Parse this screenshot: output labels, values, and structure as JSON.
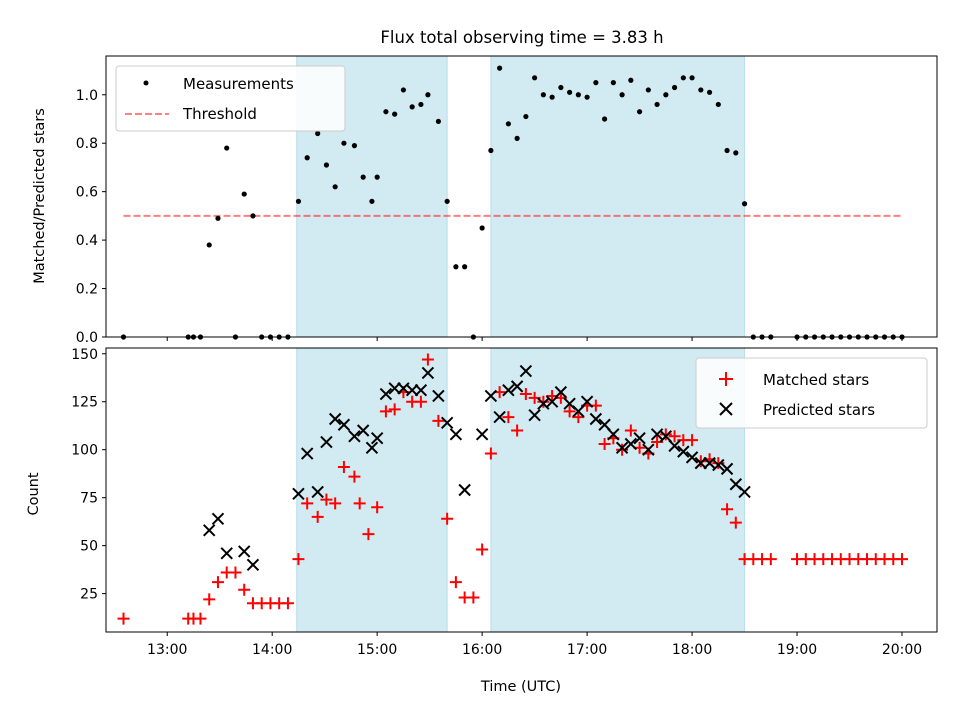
{
  "title": "Flux total observing time = 3.83 h",
  "colors": {
    "band": "#add8e6",
    "threshold": "#ff0000",
    "measurements": "#000000",
    "matched": "#ff0000",
    "predicted": "#000000"
  },
  "chart_data": [
    {
      "type": "scatter",
      "title": "Flux total observing time = 3.83 h",
      "xlabel": "",
      "ylabel": "Matched/Predicted stars",
      "xlim": [
        "12:25",
        "20:20"
      ],
      "ylim": [
        0,
        1.16
      ],
      "yticks": [
        "0.0",
        "0.2",
        "0.4",
        "0.6",
        "0.8",
        "1.0"
      ],
      "ytick_values": [
        0,
        0.2,
        0.4,
        0.6,
        0.8,
        1.0
      ],
      "shaded_intervals": [
        [
          "14:14",
          "15:40"
        ],
        [
          "16:05",
          "18:30"
        ]
      ],
      "legend": {
        "position": "upper-left",
        "entries": [
          "Measurements",
          "Threshold"
        ]
      },
      "threshold": {
        "name": "Threshold",
        "y": 0.5,
        "x_range": [
          "12:35",
          "20:00"
        ],
        "style": "dashed"
      },
      "series": [
        {
          "name": "Measurements",
          "marker": "dot",
          "points": [
            [
              "12:35",
              0.0
            ],
            [
              "13:12",
              0.0
            ],
            [
              "13:15",
              0.0
            ],
            [
              "13:19",
              0.0
            ],
            [
              "13:24",
              0.38
            ],
            [
              "13:29",
              0.49
            ],
            [
              "13:34",
              0.78
            ],
            [
              "13:39",
              0.0
            ],
            [
              "13:44",
              0.59
            ],
            [
              "13:49",
              0.5
            ],
            [
              "13:54",
              0.0
            ],
            [
              "13:59",
              0.0
            ],
            [
              "14:04",
              0.0
            ],
            [
              "14:09",
              0.0
            ],
            [
              "14:15",
              0.56
            ],
            [
              "14:20",
              0.74
            ],
            [
              "14:26",
              0.84
            ],
            [
              "14:31",
              0.71
            ],
            [
              "14:36",
              0.62
            ],
            [
              "14:41",
              0.8
            ],
            [
              "14:47",
              0.79
            ],
            [
              "14:52",
              0.66
            ],
            [
              "14:57",
              0.56
            ],
            [
              "15:00",
              0.66
            ],
            [
              "15:05",
              0.93
            ],
            [
              "15:10",
              0.92
            ],
            [
              "15:15",
              1.02
            ],
            [
              "15:20",
              0.95
            ],
            [
              "15:25",
              0.96
            ],
            [
              "15:29",
              1.0
            ],
            [
              "15:35",
              0.89
            ],
            [
              "15:40",
              0.56
            ],
            [
              "15:45",
              0.29
            ],
            [
              "15:50",
              0.29
            ],
            [
              "15:55",
              0.0
            ],
            [
              "16:00",
              0.45
            ],
            [
              "16:05",
              0.77
            ],
            [
              "16:10",
              1.11
            ],
            [
              "16:15",
              0.88
            ],
            [
              "16:20",
              0.82
            ],
            [
              "16:25",
              0.91
            ],
            [
              "16:30",
              1.07
            ],
            [
              "16:35",
              1.0
            ],
            [
              "16:40",
              0.99
            ],
            [
              "16:45",
              1.03
            ],
            [
              "16:50",
              1.01
            ],
            [
              "16:55",
              1.0
            ],
            [
              "17:00",
              0.99
            ],
            [
              "17:05",
              1.05
            ],
            [
              "17:10",
              0.9
            ],
            [
              "17:15",
              1.05
            ],
            [
              "17:20",
              1.0
            ],
            [
              "17:25",
              1.06
            ],
            [
              "17:30",
              0.93
            ],
            [
              "17:35",
              1.02
            ],
            [
              "17:40",
              0.96
            ],
            [
              "17:45",
              1.0
            ],
            [
              "17:50",
              1.03
            ],
            [
              "17:55",
              1.07
            ],
            [
              "18:00",
              1.07
            ],
            [
              "18:05",
              1.02
            ],
            [
              "18:10",
              1.01
            ],
            [
              "18:15",
              0.96
            ],
            [
              "18:20",
              0.77
            ],
            [
              "18:25",
              0.76
            ],
            [
              "18:30",
              0.55
            ],
            [
              "18:35",
              0.0
            ],
            [
              "18:40",
              0.0
            ],
            [
              "18:45",
              0.0
            ],
            [
              "19:00",
              0.0
            ],
            [
              "19:05",
              0.0
            ],
            [
              "19:10",
              0.0
            ],
            [
              "19:15",
              0.0
            ],
            [
              "19:20",
              0.0
            ],
            [
              "19:25",
              0.0
            ],
            [
              "19:30",
              0.0
            ],
            [
              "19:35",
              0.0
            ],
            [
              "19:40",
              0.0
            ],
            [
              "19:45",
              0.0
            ],
            [
              "19:50",
              0.0
            ],
            [
              "19:55",
              0.0
            ],
            [
              "20:00",
              0.0
            ]
          ]
        }
      ]
    },
    {
      "type": "scatter",
      "title": "",
      "xlabel": "Time (UTC)",
      "ylabel": "Count",
      "xlim": [
        "12:25",
        "20:20"
      ],
      "ylim": [
        5,
        153
      ],
      "yticks": [
        "25",
        "50",
        "75",
        "100",
        "125",
        "150"
      ],
      "ytick_values": [
        25,
        50,
        75,
        100,
        125,
        150
      ],
      "xticks": [
        "13:00",
        "14:00",
        "15:00",
        "16:00",
        "17:00",
        "18:00",
        "19:00",
        "20:00"
      ],
      "shaded_intervals": [
        [
          "14:14",
          "15:40"
        ],
        [
          "16:05",
          "18:30"
        ]
      ],
      "legend": {
        "position": "upper-right",
        "entries": [
          "Matched stars",
          "Predicted stars"
        ]
      },
      "series": [
        {
          "name": "Matched stars",
          "marker": "plus",
          "points": [
            [
              "12:35",
              12
            ],
            [
              "13:12",
              12
            ],
            [
              "13:15",
              12
            ],
            [
              "13:19",
              12
            ],
            [
              "13:24",
              22
            ],
            [
              "13:29",
              31
            ],
            [
              "13:34",
              36
            ],
            [
              "13:39",
              36
            ],
            [
              "13:44",
              27
            ],
            [
              "13:49",
              20
            ],
            [
              "13:54",
              20
            ],
            [
              "13:59",
              20
            ],
            [
              "14:04",
              20
            ],
            [
              "14:09",
              20
            ],
            [
              "14:15",
              43
            ],
            [
              "14:20",
              72
            ],
            [
              "14:26",
              65
            ],
            [
              "14:31",
              74
            ],
            [
              "14:36",
              72
            ],
            [
              "14:41",
              91
            ],
            [
              "14:47",
              86
            ],
            [
              "14:50",
              72
            ],
            [
              "14:55",
              56
            ],
            [
              "15:00",
              70
            ],
            [
              "15:05",
              120
            ],
            [
              "15:10",
              121
            ],
            [
              "15:15",
              130
            ],
            [
              "15:20",
              125
            ],
            [
              "15:25",
              125
            ],
            [
              "15:29",
              147
            ],
            [
              "15:35",
              115
            ],
            [
              "15:40",
              64
            ],
            [
              "15:45",
              31
            ],
            [
              "15:50",
              23
            ],
            [
              "15:55",
              23
            ],
            [
              "16:00",
              48
            ],
            [
              "16:05",
              98
            ],
            [
              "16:10",
              130
            ],
            [
              "16:15",
              117
            ],
            [
              "16:20",
              110
            ],
            [
              "16:25",
              129
            ],
            [
              "16:30",
              127
            ],
            [
              "16:35",
              125
            ],
            [
              "16:40",
              128
            ],
            [
              "16:45",
              127
            ],
            [
              "16:50",
              120
            ],
            [
              "16:55",
              117
            ],
            [
              "17:00",
              123
            ],
            [
              "17:05",
              123
            ],
            [
              "17:10",
              103
            ],
            [
              "17:15",
              106
            ],
            [
              "17:20",
              100
            ],
            [
              "17:25",
              110
            ],
            [
              "17:30",
              101
            ],
            [
              "17:35",
              98
            ],
            [
              "17:40",
              104
            ],
            [
              "17:45",
              108
            ],
            [
              "17:50",
              107
            ],
            [
              "17:55",
              105
            ],
            [
              "18:00",
              105
            ],
            [
              "18:05",
              94
            ],
            [
              "18:10",
              95
            ],
            [
              "18:15",
              93
            ],
            [
              "18:20",
              69
            ],
            [
              "18:25",
              62
            ],
            [
              "18:30",
              43
            ],
            [
              "18:35",
              43
            ],
            [
              "18:40",
              43
            ],
            [
              "18:45",
              43
            ],
            [
              "19:00",
              43
            ],
            [
              "19:05",
              43
            ],
            [
              "19:10",
              43
            ],
            [
              "19:15",
              43
            ],
            [
              "19:20",
              43
            ],
            [
              "19:25",
              43
            ],
            [
              "19:30",
              43
            ],
            [
              "19:35",
              43
            ],
            [
              "19:40",
              43
            ],
            [
              "19:45",
              43
            ],
            [
              "19:50",
              43
            ],
            [
              "19:55",
              43
            ],
            [
              "20:00",
              43
            ]
          ]
        },
        {
          "name": "Predicted stars",
          "marker": "x",
          "points": [
            [
              "13:24",
              58
            ],
            [
              "13:29",
              64
            ],
            [
              "13:34",
              46
            ],
            [
              "13:44",
              47
            ],
            [
              "13:49",
              40
            ],
            [
              "14:15",
              77
            ],
            [
              "14:20",
              98
            ],
            [
              "14:26",
              78
            ],
            [
              "14:31",
              104
            ],
            [
              "14:36",
              116
            ],
            [
              "14:41",
              113
            ],
            [
              "14:47",
              107
            ],
            [
              "14:52",
              110
            ],
            [
              "14:57",
              101
            ],
            [
              "15:00",
              106
            ],
            [
              "15:05",
              129
            ],
            [
              "15:10",
              132
            ],
            [
              "15:15",
              132
            ],
            [
              "15:20",
              131
            ],
            [
              "15:25",
              131
            ],
            [
              "15:29",
              140
            ],
            [
              "15:35",
              128
            ],
            [
              "15:40",
              114
            ],
            [
              "15:45",
              108
            ],
            [
              "15:50",
              79
            ],
            [
              "16:00",
              108
            ],
            [
              "16:05",
              128
            ],
            [
              "16:10",
              117
            ],
            [
              "16:15",
              131
            ],
            [
              "16:20",
              133
            ],
            [
              "16:25",
              141
            ],
            [
              "16:30",
              118
            ],
            [
              "16:35",
              124
            ],
            [
              "16:40",
              125
            ],
            [
              "16:45",
              130
            ],
            [
              "16:50",
              124
            ],
            [
              "16:55",
              120
            ],
            [
              "17:00",
              125
            ],
            [
              "17:05",
              116
            ],
            [
              "17:10",
              113
            ],
            [
              "17:15",
              108
            ],
            [
              "17:20",
              101
            ],
            [
              "17:25",
              103
            ],
            [
              "17:30",
              106
            ],
            [
              "17:35",
              100
            ],
            [
              "17:40",
              108
            ],
            [
              "17:45",
              107
            ],
            [
              "17:50",
              102
            ],
            [
              "17:55",
              99
            ],
            [
              "18:00",
              96
            ],
            [
              "18:05",
              93
            ],
            [
              "18:10",
              93
            ],
            [
              "18:15",
              92
            ],
            [
              "18:20",
              90
            ],
            [
              "18:25",
              82
            ],
            [
              "18:30",
              78
            ]
          ]
        }
      ]
    }
  ]
}
